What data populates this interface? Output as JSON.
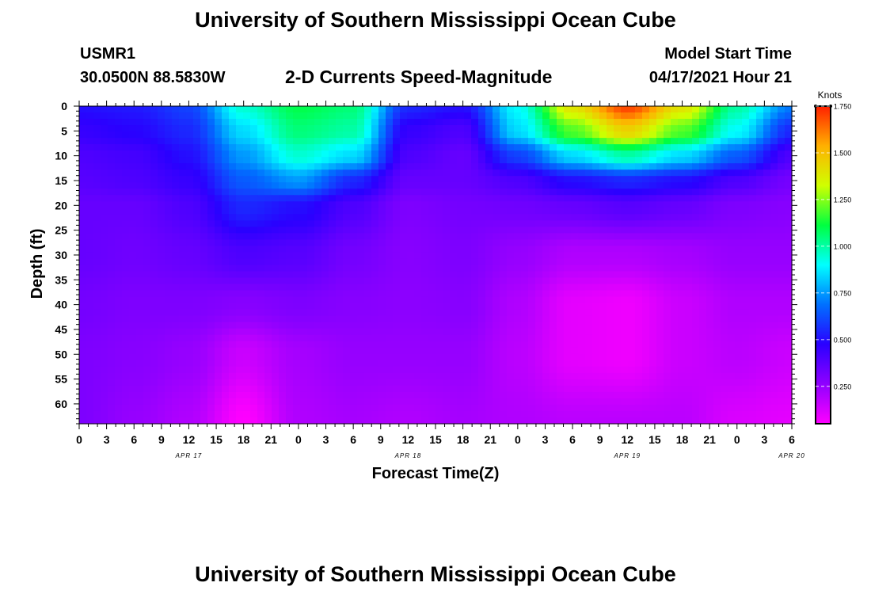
{
  "page_title_top": "University of Southern Mississippi Ocean Cube",
  "page_title_bottom": "University of Southern Mississippi Ocean Cube",
  "station": {
    "id": "USMR1",
    "location": "30.0500N  88.5830W"
  },
  "model": {
    "label": "Model Start Time",
    "start": "04/17/2021 Hour 21"
  },
  "chart_data": {
    "type": "heatmap",
    "title": "2-D Currents Speed-Magnitude",
    "xlabel": "Forecast Time(Z)",
    "ylabel": "Depth (ft)",
    "x_range_hours_from_0417_00Z": [
      0,
      78
    ],
    "x_tick_labels": [
      "0",
      "3",
      "6",
      "9",
      "12",
      "15",
      "18",
      "21",
      "0",
      "3",
      "6",
      "9",
      "12",
      "15",
      "18",
      "21",
      "0",
      "3",
      "6",
      "9",
      "12",
      "15",
      "18",
      "21",
      "0",
      "3",
      "6"
    ],
    "date_labels": [
      {
        "label": "APR 17",
        "hour": 12
      },
      {
        "label": "APR 18",
        "hour": 36
      },
      {
        "label": "APR 19",
        "hour": 60
      },
      {
        "label": "APR 20",
        "hour": 78
      }
    ],
    "y_ticks": [
      0,
      5,
      10,
      15,
      20,
      25,
      30,
      35,
      40,
      45,
      50,
      55,
      60
    ],
    "ylim": [
      64,
      0
    ],
    "colorbar": {
      "title": "Knots",
      "ticks": [
        "0.250",
        "0.500",
        "0.750",
        "1.000",
        "1.250",
        "1.500",
        "1.750"
      ],
      "range": [
        0.05,
        1.75
      ]
    },
    "grid": {
      "hours": [
        0,
        6,
        12,
        18,
        24,
        30,
        36,
        42,
        48,
        54,
        60,
        66,
        72,
        78
      ],
      "depths": [
        0,
        5,
        10,
        15,
        20,
        30,
        40,
        50,
        64
      ],
      "values": [
        [
          0.5,
          0.52,
          0.6,
          0.95,
          1.1,
          1.05,
          0.55,
          0.5,
          0.9,
          1.4,
          1.7,
          1.4,
          1.0,
          0.7
        ],
        [
          0.45,
          0.48,
          0.55,
          0.85,
          1.05,
          1.0,
          0.45,
          0.4,
          0.85,
          1.2,
          1.45,
          1.2,
          0.9,
          0.55
        ],
        [
          0.4,
          0.42,
          0.5,
          0.75,
          0.95,
          0.85,
          0.4,
          0.35,
          0.6,
          0.85,
          1.0,
          0.85,
          0.65,
          0.4
        ],
        [
          0.38,
          0.4,
          0.45,
          0.65,
          0.75,
          0.55,
          0.35,
          0.35,
          0.4,
          0.5,
          0.55,
          0.5,
          0.4,
          0.32
        ],
        [
          0.35,
          0.35,
          0.4,
          0.55,
          0.5,
          0.4,
          0.3,
          0.32,
          0.33,
          0.35,
          0.38,
          0.35,
          0.3,
          0.28
        ],
        [
          0.35,
          0.33,
          0.35,
          0.4,
          0.38,
          0.32,
          0.28,
          0.3,
          0.25,
          0.2,
          0.2,
          0.22,
          0.25,
          0.25
        ],
        [
          0.32,
          0.3,
          0.3,
          0.28,
          0.3,
          0.28,
          0.27,
          0.28,
          0.2,
          0.1,
          0.08,
          0.15,
          0.2,
          0.2
        ],
        [
          0.3,
          0.28,
          0.25,
          0.15,
          0.22,
          0.25,
          0.25,
          0.25,
          0.18,
          0.1,
          0.08,
          0.15,
          0.18,
          0.15
        ],
        [
          0.3,
          0.25,
          0.2,
          0.05,
          0.2,
          0.22,
          0.2,
          0.22,
          0.2,
          0.18,
          0.18,
          0.18,
          0.12,
          0.1
        ]
      ]
    }
  }
}
